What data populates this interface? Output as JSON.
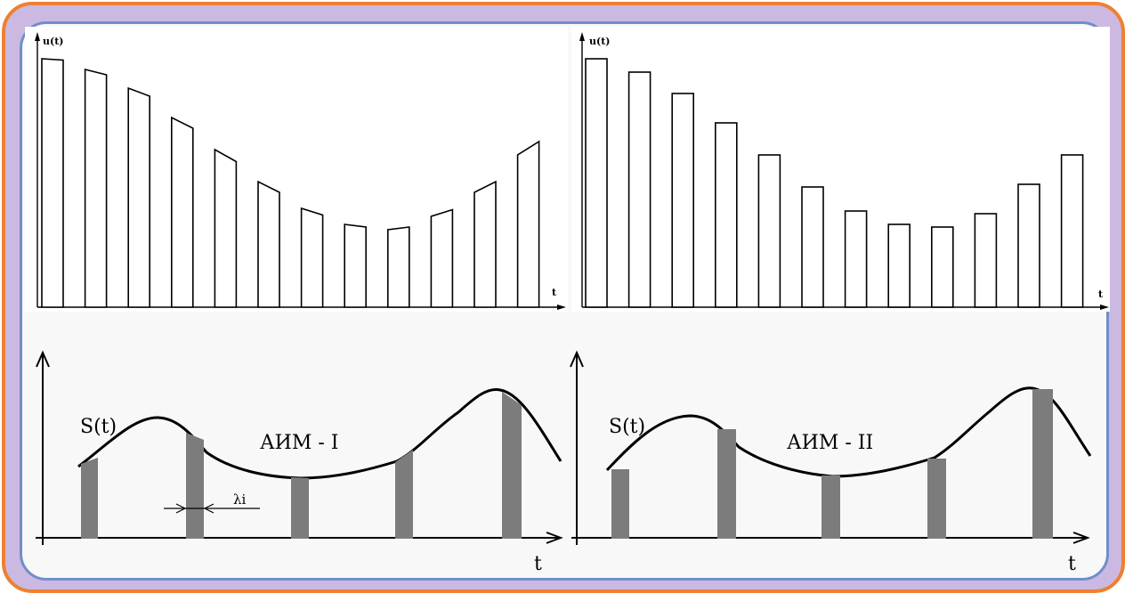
{
  "top_left_chart": {
    "y_label": "u(t)",
    "x_label": "t",
    "heights": [
      0.93,
      0.89,
      0.82,
      0.71,
      0.59,
      0.47,
      0.37,
      0.31,
      0.29,
      0.34,
      0.43,
      0.57
    ],
    "slopes": [
      0.005,
      0.02,
      0.03,
      0.04,
      0.045,
      0.04,
      0.025,
      0.01,
      -0.01,
      -0.025,
      -0.04,
      -0.05
    ]
  },
  "top_right_chart": {
    "y_label": "u(t)",
    "x_label": "t",
    "heights": [
      0.93,
      0.88,
      0.8,
      0.69,
      0.57,
      0.45,
      0.36,
      0.31,
      0.3,
      0.35,
      0.46,
      0.57
    ]
  },
  "bottom_left_diagram": {
    "curve_label": "S(t)",
    "modulation_label": "АИМ - I",
    "width_label": "λi",
    "x_label": "t"
  },
  "bottom_right_diagram": {
    "curve_label": "S(t)",
    "modulation_label": "АИМ - II",
    "x_label": "t"
  },
  "colors": {
    "outer_border": "#ee8030",
    "outer_fill": "#cbb9e2",
    "inner_border": "#6f8fc9",
    "pulse_fill": "#7c7c7c"
  }
}
